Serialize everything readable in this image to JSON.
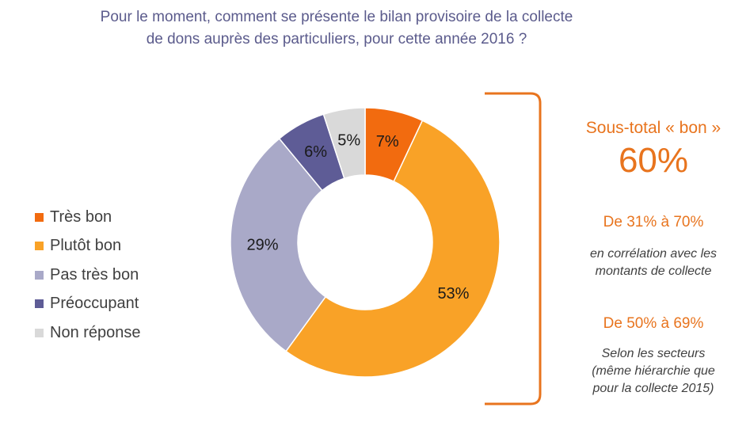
{
  "title_lines": [
    "Pour le moment, comment se présente le bilan provisoire de la collecte",
    "de dons auprès des particuliers, pour cette année 2016 ?"
  ],
  "chart_data": {
    "type": "pie",
    "variant": "donut",
    "categories": [
      "Très bon",
      "Plutôt bon",
      "Pas très bon",
      "Préoccupant",
      "Non réponse"
    ],
    "values": [
      7,
      53,
      29,
      6,
      5
    ],
    "labels": [
      "7%",
      "53%",
      "29%",
      "6%",
      "5%"
    ],
    "colors": [
      "#f26b0f",
      "#f9a227",
      "#a9a9c8",
      "#5e5c96",
      "#d9d9d9"
    ],
    "legend_position": "left"
  },
  "annotations": {
    "subtotal_label": "Sous-total « bon »",
    "subtotal_value": "60%",
    "range1": "De 31% à 70%",
    "note1_lines": [
      "en corrélation avec les",
      "montants de collecte"
    ],
    "range2": "De 50% à 69%",
    "note2_lines": [
      "Selon les secteurs",
      "(même hiérarchie que",
      "pour la collecte 2015)"
    ],
    "bracket_color": "#e8741e"
  }
}
